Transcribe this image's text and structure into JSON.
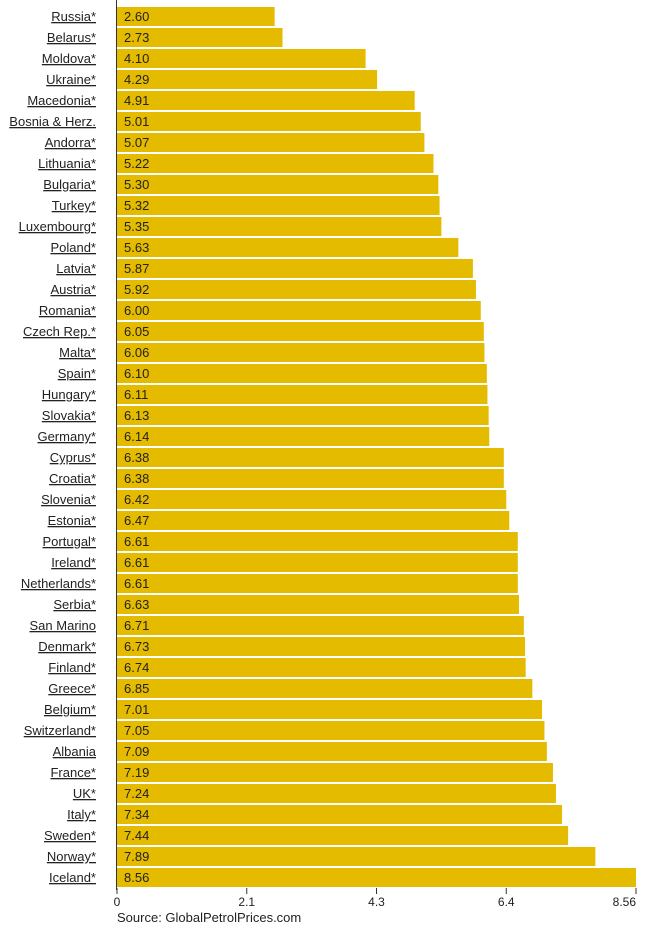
{
  "chart_data": {
    "type": "bar",
    "orientation": "horizontal",
    "categories": [
      "Russia*",
      "Belarus*",
      "Moldova*",
      "Ukraine*",
      "Macedonia*",
      "Bosnia & Herz.",
      "Andorra*",
      "Lithuania*",
      "Bulgaria*",
      "Turkey*",
      "Luxembourg*",
      "Poland*",
      "Latvia*",
      "Austria*",
      "Romania*",
      "Czech Rep.*",
      "Malta*",
      "Spain*",
      "Hungary*",
      "Slovakia*",
      "Germany*",
      "Cyprus*",
      "Croatia*",
      "Slovenia*",
      "Estonia*",
      "Portugal*",
      "Ireland*",
      "Netherlands*",
      "Serbia*",
      "San Marino",
      "Denmark*",
      "Finland*",
      "Greece*",
      "Belgium*",
      "Switzerland*",
      "Albania",
      "France*",
      "UK*",
      "Italy*",
      "Sweden*",
      "Norway*",
      "Iceland*"
    ],
    "values": [
      2.6,
      2.73,
      4.1,
      4.29,
      4.91,
      5.01,
      5.07,
      5.22,
      5.3,
      5.32,
      5.35,
      5.63,
      5.87,
      5.92,
      6.0,
      6.05,
      6.06,
      6.1,
      6.11,
      6.13,
      6.14,
      6.38,
      6.38,
      6.42,
      6.47,
      6.61,
      6.61,
      6.61,
      6.63,
      6.71,
      6.73,
      6.74,
      6.85,
      7.01,
      7.05,
      7.09,
      7.19,
      7.24,
      7.34,
      7.44,
      7.89,
      8.56
    ],
    "value_labels": [
      "2.60",
      "2.73",
      "4.10",
      "4.29",
      "4.91",
      "5.01",
      "5.07",
      "5.22",
      "5.30",
      "5.32",
      "5.35",
      "5.63",
      "5.87",
      "5.92",
      "6.00",
      "6.05",
      "6.06",
      "6.10",
      "6.11",
      "6.13",
      "6.14",
      "6.38",
      "6.38",
      "6.42",
      "6.47",
      "6.61",
      "6.61",
      "6.61",
      "6.63",
      "6.71",
      "6.73",
      "6.74",
      "6.85",
      "7.01",
      "7.05",
      "7.09",
      "7.19",
      "7.24",
      "7.34",
      "7.44",
      "7.89",
      "8.56"
    ],
    "xlim": [
      0,
      8.56
    ],
    "xticks": [
      0,
      2.14,
      4.28,
      6.42,
      8.56
    ],
    "xtick_labels": [
      "0",
      "2.1",
      "4.3",
      "6.4",
      "8.56"
    ],
    "grid": false,
    "bar_color": "#e5bb00"
  },
  "source_text": "Source: GlobalPetrolPrices.com"
}
